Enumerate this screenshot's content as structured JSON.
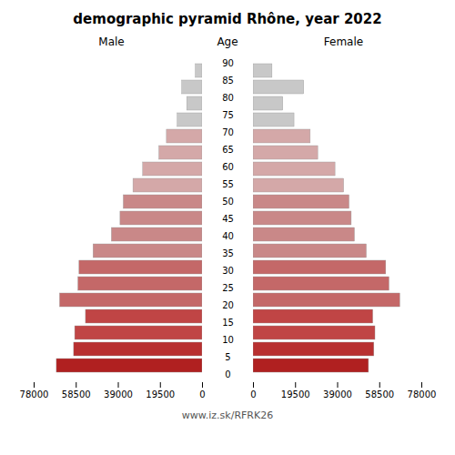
{
  "chart_data": {
    "type": "bar",
    "orientation": "horizontal",
    "title": "demographic pyramid Rhône, year 2022",
    "y_label": "Age",
    "caption": "www.iz.sk/RFRK26",
    "categories": [
      "90",
      "85",
      "80",
      "75",
      "70",
      "65",
      "60",
      "55",
      "50",
      "45",
      "40",
      "35",
      "30",
      "25",
      "20",
      "15",
      "10",
      "5",
      "0"
    ],
    "series": [
      {
        "name": "Male",
        "values": [
          3100,
          9400,
          7100,
          11500,
          16500,
          20000,
          27500,
          32000,
          36500,
          38000,
          42000,
          50500,
          57000,
          57500,
          66000,
          54000,
          59000,
          59500,
          67500
        ]
      },
      {
        "name": "Female",
        "values": [
          8800,
          23500,
          13800,
          19000,
          26500,
          30000,
          38000,
          42000,
          44500,
          45500,
          47000,
          52500,
          61500,
          63000,
          68000,
          55500,
          56500,
          56000,
          53500
        ]
      }
    ],
    "colors": [
      "#c8c8c8",
      "#c8c8c8",
      "#c8c8c8",
      "#c8c8c8",
      "#d4a8a8",
      "#d4a8a8",
      "#d4a8a8",
      "#d4a8a8",
      "#c98888",
      "#c98888",
      "#c98888",
      "#c98888",
      "#c46868",
      "#c46868",
      "#c46868",
      "#c04545",
      "#c04545",
      "#b83030",
      "#b02020"
    ],
    "xlim": [
      0,
      78000
    ],
    "xticks": [
      0,
      19500,
      39000,
      58500,
      78000
    ],
    "grid": false
  }
}
